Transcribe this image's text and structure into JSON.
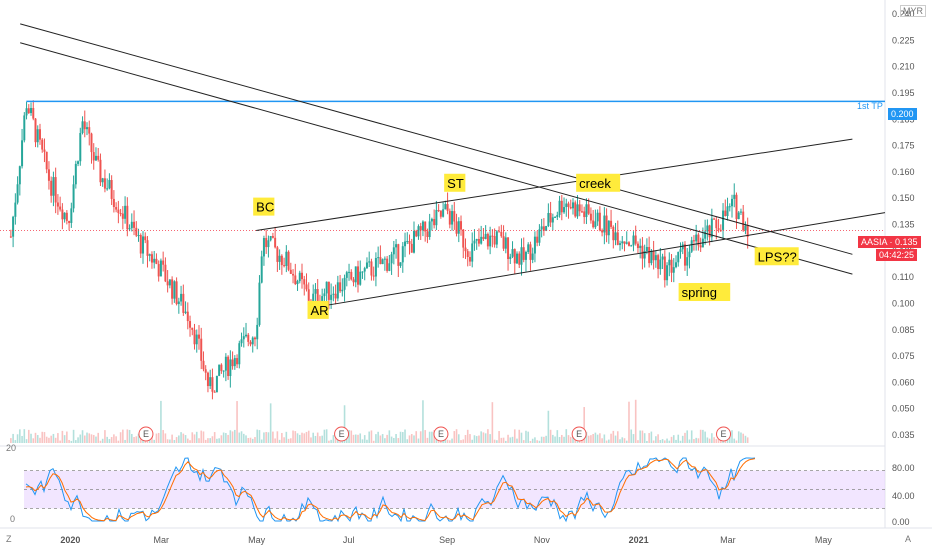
{
  "header": {
    "currency": "MYR"
  },
  "price_tag": {
    "label": "AASIA · 0.135",
    "countdown": "04:42:25",
    "color": "#f23645"
  },
  "tp_line": {
    "label": "1st TP",
    "value_label": "0.200",
    "color": "#2196f3"
  },
  "footer": {
    "left_icon": "Z",
    "right_icon": "A"
  },
  "oscillator": {
    "top_label": "20",
    "bottom_label": "0",
    "levels": [
      "80.00",
      "40.00",
      "0.00"
    ]
  },
  "annotations": [
    {
      "text": "BC",
      "date": "2020-05-01",
      "price": 0.145
    },
    {
      "text": "ST",
      "date": "2020-09-01",
      "price": 0.157
    },
    {
      "text": "creek",
      "date": "2020-11-25",
      "price": 0.157
    },
    {
      "text": "AR",
      "date": "2020-06-05",
      "price": 0.093
    },
    {
      "text": "LPS??",
      "date": "2021-03-20",
      "price": 0.12
    },
    {
      "text": "spring",
      "date": "2021-01-30",
      "price": 0.102
    }
  ],
  "earnings_marker": "E",
  "earnings_dates": [
    "2020-02-20",
    "2020-06-25",
    "2020-08-28",
    "2020-11-25",
    "2021-02-26"
  ],
  "chart_data": {
    "type": "candlestick",
    "symbol": "AASIA",
    "title": "",
    "xlabel": "",
    "ylabel": "",
    "x_tick_labels": [
      "2020",
      "Mar",
      "May",
      "Jul",
      "Sep",
      "Nov",
      "2021",
      "Mar",
      "May"
    ],
    "x_tick_dates": [
      "2020-01-01",
      "2020-03-01",
      "2020-05-01",
      "2020-07-01",
      "2020-09-01",
      "2020-11-01",
      "2021-01-01",
      "2021-03-01",
      "2021-05-01"
    ],
    "x_range": [
      "2019-11-18",
      "2021-06-10"
    ],
    "y_tick_labels": [
      "0.240",
      "0.225",
      "0.210",
      "0.195",
      "0.185",
      "0.175",
      "0.160",
      "0.150",
      "0.135",
      "0.125",
      "0.110",
      "0.100",
      "0.085",
      "0.075",
      "0.060",
      "0.050",
      "0.035"
    ],
    "y_range": [
      0.028,
      0.247
    ],
    "horizontal_lines": [
      {
        "value": 0.2,
        "label": "1st TP"
      }
    ],
    "current_price": 0.135,
    "trend_lines": [
      {
        "from": [
          "2019-12-01",
          0.239
        ],
        "to": [
          "2021-05-20",
          0.123
        ]
      },
      {
        "from": [
          "2019-12-01",
          0.2295
        ],
        "to": [
          "2021-05-20",
          0.113
        ]
      },
      {
        "from": [
          "2020-05-01",
          0.135
        ],
        "to": [
          "2021-05-20",
          0.181
        ]
      },
      {
        "from": [
          "2020-06-05",
          0.096
        ],
        "to": [
          "2021-06-10",
          0.144
        ]
      }
    ],
    "price_path": [
      [
        "2019-11-25",
        0.132
      ],
      [
        "2019-12-05",
        0.2
      ],
      [
        "2019-12-20",
        0.16
      ],
      [
        "2020-01-01",
        0.14
      ],
      [
        "2020-01-10",
        0.19
      ],
      [
        "2020-01-20",
        0.165
      ],
      [
        "2020-02-01",
        0.15
      ],
      [
        "2020-02-15",
        0.13
      ],
      [
        "2020-03-01",
        0.115
      ],
      [
        "2020-03-20",
        0.09
      ],
      [
        "2020-04-01",
        0.055
      ],
      [
        "2020-04-20",
        0.075
      ],
      [
        "2020-05-01",
        0.085
      ],
      [
        "2020-05-05",
        0.13
      ],
      [
        "2020-05-20",
        0.12
      ],
      [
        "2020-06-05",
        0.1
      ],
      [
        "2020-07-01",
        0.11
      ],
      [
        "2020-08-01",
        0.123
      ],
      [
        "2020-09-01",
        0.145
      ],
      [
        "2020-09-15",
        0.125
      ],
      [
        "2020-10-01",
        0.132
      ],
      [
        "2020-10-20",
        0.12
      ],
      [
        "2020-11-01",
        0.135
      ],
      [
        "2020-11-15",
        0.15
      ],
      [
        "2020-12-10",
        0.138
      ],
      [
        "2021-01-01",
        0.128
      ],
      [
        "2021-01-20",
        0.115
      ],
      [
        "2021-02-15",
        0.132
      ],
      [
        "2021-03-05",
        0.148
      ],
      [
        "2021-03-15",
        0.135
      ]
    ],
    "oscillator": {
      "type": "stochastic",
      "y_range": [
        0,
        100
      ],
      "band": [
        20,
        80
      ],
      "mid": 50
    }
  }
}
